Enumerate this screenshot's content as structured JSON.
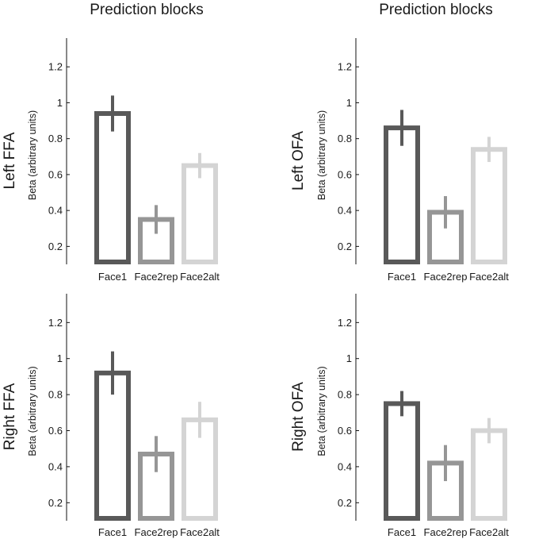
{
  "figure": {
    "column_titles": [
      "Prediction blocks",
      "Prediction blocks"
    ],
    "bar_colors": [
      "#595959",
      "#969696",
      "#d4d4d4"
    ],
    "errorbar_colors": [
      "#595959",
      "#969696",
      "#d4d4d4"
    ]
  },
  "chart_data": [
    {
      "type": "bar",
      "row_label": "Left FFA",
      "ylabel": "Beta (arbitrary units)",
      "categories": [
        "Face1",
        "Face2rep",
        "Face2alt"
      ],
      "values": [
        0.94,
        0.35,
        0.65
      ],
      "errors": [
        0.1,
        0.08,
        0.07
      ],
      "ylim": [
        0.1,
        1.36
      ],
      "yticks": [
        0.2,
        0.4,
        0.6,
        0.8,
        1,
        1.2
      ],
      "ytick_labels": [
        "0.2",
        "0.4",
        "0.6",
        "0.8",
        "1",
        "1.2"
      ]
    },
    {
      "type": "bar",
      "row_label": "Left OFA",
      "ylabel": "Beta (arbitrary units)",
      "categories": [
        "Face1",
        "Face2rep",
        "Face2alt"
      ],
      "values": [
        0.86,
        0.39,
        0.74
      ],
      "errors": [
        0.1,
        0.09,
        0.07
      ],
      "ylim": [
        0.1,
        1.36
      ],
      "yticks": [
        0.2,
        0.4,
        0.6,
        0.8,
        1,
        1.2
      ],
      "ytick_labels": [
        "0.2",
        "0.4",
        "0.6",
        "0.8",
        "1",
        "1.2"
      ]
    },
    {
      "type": "bar",
      "row_label": "Right FFA",
      "ylabel": "Beta (arbitrary units)",
      "categories": [
        "Face1",
        "Face2rep",
        "Face2alt"
      ],
      "values": [
        0.92,
        0.47,
        0.66
      ],
      "errors": [
        0.12,
        0.1,
        0.1
      ],
      "ylim": [
        0.1,
        1.36
      ],
      "yticks": [
        0.2,
        0.4,
        0.6,
        0.8,
        1,
        1.2
      ],
      "ytick_labels": [
        "0.2",
        "0.4",
        "0.6",
        "0.8",
        "1",
        "1.2"
      ]
    },
    {
      "type": "bar",
      "row_label": "Right OFA",
      "ylabel": "Beta (arbitrary units)",
      "categories": [
        "Face1",
        "Face2rep",
        "Face2alt"
      ],
      "values": [
        0.75,
        0.42,
        0.6
      ],
      "errors": [
        0.07,
        0.1,
        0.07
      ],
      "ylim": [
        0.1,
        1.36
      ],
      "yticks": [
        0.2,
        0.4,
        0.6,
        0.8,
        1,
        1.2
      ],
      "ytick_labels": [
        "0.2",
        "0.4",
        "0.6",
        "0.8",
        "1",
        "1.2"
      ]
    }
  ]
}
